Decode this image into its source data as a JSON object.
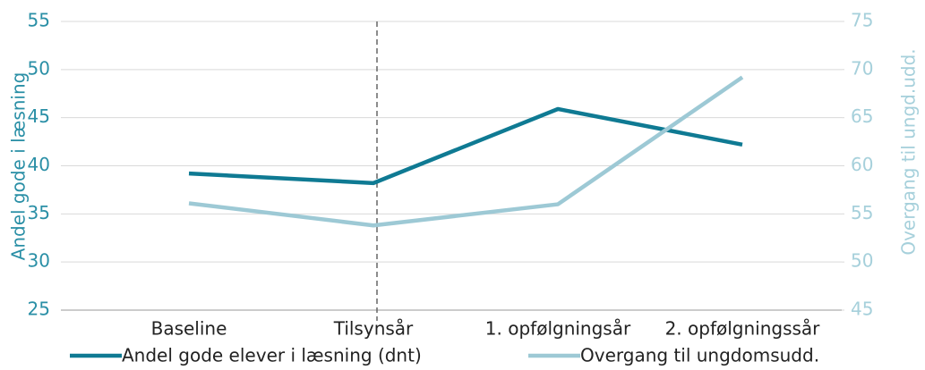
{
  "chart_data": {
    "type": "line",
    "categories": [
      "Baseline",
      "Tilsynsår",
      "1. opfølgningsår",
      "2. opfølgningssår"
    ],
    "series": [
      {
        "name": "Andel gode elever i læsning (dnt)",
        "color": "#0f7a93",
        "values": [
          39.2,
          38.2,
          45.9,
          42.2
        ]
      },
      {
        "name": "Overgang til ungdomsudd.",
        "color": "#9dc9d5",
        "axis": "y2",
        "values": [
          56.1,
          53.8,
          56.0,
          69.2
        ]
      }
    ],
    "ylabel": "Andel gode i læsning",
    "y2label": "Overgang til ungd.udd.",
    "ylim": [
      25,
      55
    ],
    "yticks": [
      25,
      30,
      35,
      40,
      45,
      50,
      55
    ],
    "y2lim": [
      45,
      75
    ],
    "y2ticks": [
      45,
      50,
      55,
      60,
      65,
      70,
      75
    ],
    "grid": true,
    "legend": "bottom"
  }
}
